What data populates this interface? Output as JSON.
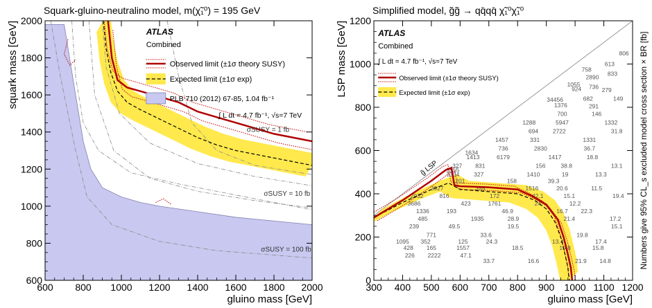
{
  "chart_data": [
    {
      "type": "line",
      "title": "Squark-gluino-neutralino model,  m(χ̃₁⁰) = 195 GeV",
      "xlabel": "gluino mass [GeV]",
      "ylabel": "squark mass [GeV]",
      "xlim": [
        600,
        2000
      ],
      "ylim": [
        600,
        2000
      ],
      "xticks": [
        600,
        800,
        1000,
        1200,
        1400,
        1600,
        1800,
        2000
      ],
      "yticks": [
        600,
        800,
        1000,
        1200,
        1400,
        1600,
        1800,
        2000
      ],
      "experiment": "ATLAS",
      "subtitle": "Combined",
      "legend": [
        {
          "name": "Observed limit (±1σ theory SUSY)",
          "color": "#b00000"
        },
        {
          "name": "Expected limit (±1σ exp)",
          "color": "#000000"
        },
        {
          "name": "PLB 710 (2012) 67-85, 1.04 fb⁻¹",
          "color": "#c8c8f0"
        }
      ],
      "lumi_label": "∫ L dt = 4.7 fb⁻¹, √s=7 TeV",
      "annotations": [
        "σSUSY = 1 fb",
        "σSUSY = 10 fb",
        "σSUSY = 100 fb"
      ],
      "series": [
        {
          "name": "Observed limit",
          "x": [
            930,
            950,
            980,
            1030,
            1100,
            1200,
            1300,
            1400,
            1500,
            1600,
            1700,
            1800,
            1900,
            2000
          ],
          "y": [
            2000,
            1800,
            1680,
            1640,
            1620,
            1590,
            1560,
            1510,
            1480,
            1450,
            1420,
            1390,
            1370,
            1350
          ]
        },
        {
          "name": "Expected limit",
          "x": [
            905,
            920,
            945,
            980,
            1030,
            1100,
            1200,
            1300,
            1400,
            1500,
            1600,
            1700,
            1800,
            1900,
            2000
          ],
          "y": [
            2000,
            1850,
            1720,
            1620,
            1560,
            1520,
            1470,
            1420,
            1370,
            1330,
            1300,
            1280,
            1260,
            1240,
            1220
          ]
        },
        {
          "name": "PLB 710 (2012) 67-85",
          "x": [
            600,
            700,
            760,
            800,
            840,
            900,
            1000,
            1100,
            1200,
            1400,
            1600,
            1800,
            2000
          ],
          "y": [
            1980,
            1980,
            1600,
            1350,
            1200,
            1100,
            1050,
            1020,
            1000,
            970,
            940,
            920,
            900
          ]
        }
      ]
    },
    {
      "type": "line",
      "title": "Simplified model, g̃g̃ → qq̄qq̄ χ̃₁⁰χ̃₁⁰",
      "xlabel": "gluino mass [GeV]",
      "ylabel": "LSP mass [GeV]",
      "zlabel": "Numbers give 95% CL_s excluded model cross section × BR [fb]",
      "xlim": [
        300,
        1200
      ],
      "ylim": [
        0,
        1200
      ],
      "xticks": [
        300,
        400,
        500,
        600,
        700,
        800,
        900,
        1000,
        1100,
        1200
      ],
      "yticks": [
        0,
        200,
        400,
        600,
        800,
        1000,
        1200
      ],
      "experiment": "ATLAS",
      "subtitle": "Combined",
      "lumi_label": "∫ L dt = 4.7 fb⁻¹, √s=7 TeV",
      "legend": [
        {
          "name": "Observed limit (±1σ theory SUSY)",
          "color": "#b00000"
        },
        {
          "name": "Expected limit (±1σ exp)",
          "color": "#000000"
        }
      ],
      "diagonal_label": "g̃ LSP",
      "series": [
        {
          "name": "Observed limit",
          "x": [
            300,
            400,
            500,
            550,
            570,
            580,
            600,
            700,
            800,
            850,
            900,
            940,
            960,
            975,
            985,
            990
          ],
          "y": [
            290,
            370,
            460,
            510,
            520,
            440,
            435,
            430,
            420,
            390,
            350,
            280,
            200,
            120,
            60,
            0
          ]
        },
        {
          "name": "Expected limit",
          "x": [
            300,
            400,
            500,
            560,
            600,
            700,
            800,
            860,
            900,
            930,
            950,
            965,
            975,
            980
          ],
          "y": [
            290,
            360,
            420,
            450,
            420,
            410,
            400,
            370,
            330,
            270,
            200,
            120,
            60,
            0
          ]
        }
      ],
      "numbers": [
        {
          "x": 1170,
          "y": 1050,
          "t": "806"
        },
        {
          "x": 1120,
          "y": 1000,
          "t": "613"
        },
        {
          "x": 1040,
          "y": 975,
          "t": "758"
        },
        {
          "x": 1130,
          "y": 955,
          "t": "833"
        },
        {
          "x": 1060,
          "y": 940,
          "t": "2890"
        },
        {
          "x": 995,
          "y": 905,
          "t": "1055"
        },
        {
          "x": 1005,
          "y": 885,
          "t": "924"
        },
        {
          "x": 1110,
          "y": 880,
          "t": "279"
        },
        {
          "x": 1065,
          "y": 895,
          "t": "736"
        },
        {
          "x": 1150,
          "y": 840,
          "t": "149"
        },
        {
          "x": 930,
          "y": 835,
          "t": "34456"
        },
        {
          "x": 950,
          "y": 810,
          "t": "1376"
        },
        {
          "x": 1045,
          "y": 840,
          "t": "682"
        },
        {
          "x": 1065,
          "y": 805,
          "t": "291"
        },
        {
          "x": 955,
          "y": 770,
          "t": "700"
        },
        {
          "x": 1075,
          "y": 770,
          "t": "146"
        },
        {
          "x": 840,
          "y": 730,
          "t": "1288"
        },
        {
          "x": 955,
          "y": 730,
          "t": "5947"
        },
        {
          "x": 1125,
          "y": 730,
          "t": "1332"
        },
        {
          "x": 855,
          "y": 690,
          "t": "694"
        },
        {
          "x": 945,
          "y": 690,
          "t": "2722"
        },
        {
          "x": 1145,
          "y": 690,
          "t": "31.8"
        },
        {
          "x": 745,
          "y": 650,
          "t": "1457"
        },
        {
          "x": 860,
          "y": 650,
          "t": "331"
        },
        {
          "x": 1050,
          "y": 650,
          "t": "1331"
        },
        {
          "x": 750,
          "y": 610,
          "t": "736"
        },
        {
          "x": 880,
          "y": 610,
          "t": "2830"
        },
        {
          "x": 1050,
          "y": 610,
          "t": "36.7"
        },
        {
          "x": 640,
          "y": 590,
          "t": "1634"
        },
        {
          "x": 645,
          "y": 570,
          "t": "1413"
        },
        {
          "x": 750,
          "y": 570,
          "t": "6179"
        },
        {
          "x": 930,
          "y": 570,
          "t": "1417"
        },
        {
          "x": 1060,
          "y": 570,
          "t": "18.8"
        },
        {
          "x": 590,
          "y": 530,
          "t": "327"
        },
        {
          "x": 670,
          "y": 530,
          "t": "831"
        },
        {
          "x": 880,
          "y": 530,
          "t": "156"
        },
        {
          "x": 970,
          "y": 530,
          "t": "38.8"
        },
        {
          "x": 1145,
          "y": 530,
          "t": "13.1"
        },
        {
          "x": 575,
          "y": 510,
          "t": "3555"
        },
        {
          "x": 575,
          "y": 490,
          "t": "3334"
        },
        {
          "x": 665,
          "y": 490,
          "t": "327"
        },
        {
          "x": 855,
          "y": 490,
          "t": "1410"
        },
        {
          "x": 965,
          "y": 490,
          "t": "19"
        },
        {
          "x": 1090,
          "y": 490,
          "t": "13.3"
        },
        {
          "x": 600,
          "y": 460,
          "t": "201"
        },
        {
          "x": 780,
          "y": 460,
          "t": "158"
        },
        {
          "x": 925,
          "y": 460,
          "t": "39.3"
        },
        {
          "x": 520,
          "y": 425,
          "t": "3927"
        },
        {
          "x": 670,
          "y": 425,
          "t": "355"
        },
        {
          "x": 850,
          "y": 425,
          "t": "1516"
        },
        {
          "x": 955,
          "y": 425,
          "t": "20.6"
        },
        {
          "x": 1075,
          "y": 425,
          "t": "11.5"
        },
        {
          "x": 450,
          "y": 390,
          "t": "2932"
        },
        {
          "x": 545,
          "y": 390,
          "t": "816"
        },
        {
          "x": 720,
          "y": 390,
          "t": "172"
        },
        {
          "x": 870,
          "y": 390,
          "t": "42.1"
        },
        {
          "x": 980,
          "y": 390,
          "t": "15.1"
        },
        {
          "x": 1150,
          "y": 390,
          "t": "19.4"
        },
        {
          "x": 440,
          "y": 355,
          "t": "3686"
        },
        {
          "x": 620,
          "y": 355,
          "t": "423"
        },
        {
          "x": 720,
          "y": 355,
          "t": "1761"
        },
        {
          "x": 870,
          "y": 355,
          "t": "24"
        },
        {
          "x": 1000,
          "y": 355,
          "t": "12.2"
        },
        {
          "x": 470,
          "y": 320,
          "t": "1336"
        },
        {
          "x": 570,
          "y": 320,
          "t": "193"
        },
        {
          "x": 765,
          "y": 320,
          "t": "46.9"
        },
        {
          "x": 955,
          "y": 320,
          "t": "16.7"
        },
        {
          "x": 1040,
          "y": 320,
          "t": "22.3"
        },
        {
          "x": 470,
          "y": 285,
          "t": "485"
        },
        {
          "x": 660,
          "y": 285,
          "t": "1935"
        },
        {
          "x": 785,
          "y": 285,
          "t": "28.9"
        },
        {
          "x": 980,
          "y": 285,
          "t": "21.4"
        },
        {
          "x": 1140,
          "y": 285,
          "t": "17.2"
        },
        {
          "x": 440,
          "y": 250,
          "t": "239"
        },
        {
          "x": 580,
          "y": 250,
          "t": "49.5"
        },
        {
          "x": 785,
          "y": 250,
          "t": "19.5"
        },
        {
          "x": 1145,
          "y": 250,
          "t": "15.1"
        },
        {
          "x": 500,
          "y": 210,
          "t": "771"
        },
        {
          "x": 690,
          "y": 210,
          "t": "33.6"
        },
        {
          "x": 1025,
          "y": 210,
          "t": "19.8"
        },
        {
          "x": 400,
          "y": 180,
          "t": "1095"
        },
        {
          "x": 480,
          "y": 180,
          "t": "352"
        },
        {
          "x": 610,
          "y": 180,
          "t": "125"
        },
        {
          "x": 710,
          "y": 180,
          "t": "24.3"
        },
        {
          "x": 940,
          "y": 180,
          "t": "13.4"
        },
        {
          "x": 1090,
          "y": 180,
          "t": "17.4"
        },
        {
          "x": 420,
          "y": 150,
          "t": "428"
        },
        {
          "x": 500,
          "y": 150,
          "t": "165"
        },
        {
          "x": 610,
          "y": 150,
          "t": "1557"
        },
        {
          "x": 800,
          "y": 150,
          "t": "18.5"
        },
        {
          "x": 965,
          "y": 150,
          "t": "15.8"
        },
        {
          "x": 1080,
          "y": 150,
          "t": "15.8"
        },
        {
          "x": 425,
          "y": 115,
          "t": "226"
        },
        {
          "x": 510,
          "y": 115,
          "t": "2222"
        },
        {
          "x": 620,
          "y": 115,
          "t": "47.1"
        },
        {
          "x": 700,
          "y": 90,
          "t": "33.7"
        },
        {
          "x": 855,
          "y": 90,
          "t": "16.6"
        },
        {
          "x": 1020,
          "y": 90,
          "t": "21.9"
        },
        {
          "x": 1105,
          "y": 90,
          "t": "14.8"
        }
      ]
    }
  ]
}
